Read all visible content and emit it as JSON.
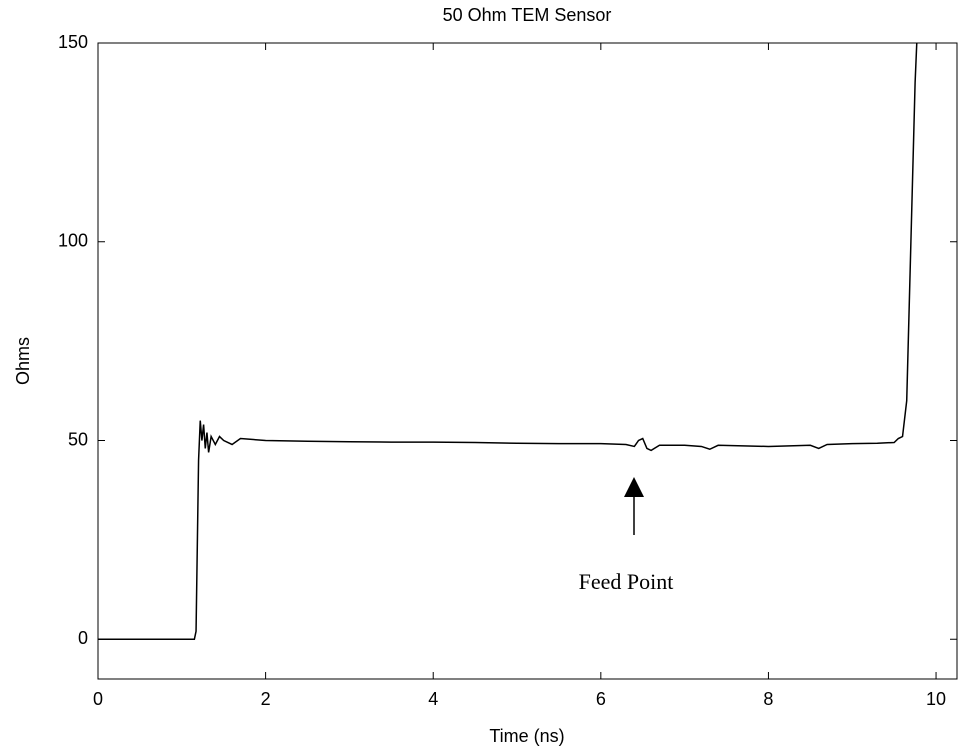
{
  "chart_data": {
    "type": "line",
    "title": "50 Ohm TEM Sensor",
    "xlabel": "Time (ns)",
    "ylabel": "Ohms",
    "annotation": "Feed Point",
    "xlim": [
      0,
      10.25
    ],
    "ylim": [
      -10,
      150
    ],
    "xticks": [
      0,
      2,
      4,
      6,
      8,
      10
    ],
    "yticks": [
      0,
      50,
      100,
      150
    ],
    "x": [
      0,
      1.15,
      1.17,
      1.2,
      1.22,
      1.24,
      1.26,
      1.28,
      1.3,
      1.32,
      1.35,
      1.4,
      1.45,
      1.5,
      1.6,
      1.7,
      2,
      2.5,
      3,
      3.5,
      4,
      4.5,
      5,
      5.5,
      6,
      6.3,
      6.4,
      6.45,
      6.5,
      6.55,
      6.6,
      6.7,
      7,
      7.2,
      7.3,
      7.4,
      8,
      8.5,
      8.6,
      8.7,
      9,
      9.3,
      9.5,
      9.55,
      9.6,
      9.65,
      9.7,
      9.75,
      9.77
    ],
    "series": [
      {
        "color": "#000000",
        "values": [
          0,
          0,
          2,
          45,
          55,
          50,
          54,
          48,
          52,
          47,
          51,
          49,
          51,
          50,
          49,
          50.5,
          50,
          49.8,
          49.7,
          49.6,
          49.6,
          49.5,
          49.3,
          49.2,
          49.2,
          49,
          48.5,
          50,
          50.5,
          48,
          47.5,
          48.8,
          48.8,
          48.5,
          47.8,
          48.8,
          48.5,
          48.8,
          48,
          49,
          49.2,
          49.3,
          49.5,
          50.5,
          51,
          60,
          100,
          140,
          150
        ]
      }
    ]
  }
}
